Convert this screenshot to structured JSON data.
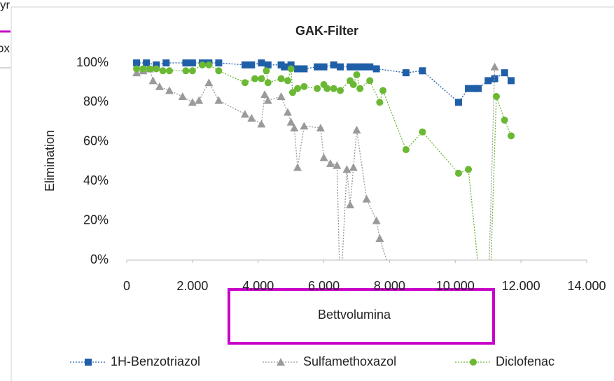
{
  "fragments": [
    "yr",
    "ox"
  ],
  "chart_data": {
    "type": "line",
    "title": "GAK-Filter",
    "xlabel": "Bettvolumina",
    "ylabel": "Elimination",
    "xlim": [
      0,
      14000
    ],
    "xticks": [
      0,
      {
        "value": 2000,
        "label": "2.000"
      },
      {
        "value": 4000,
        "label": "4.000"
      },
      {
        "value": 6000,
        "label": "6.000"
      },
      {
        "value": 8000,
        "label": "8.000"
      },
      {
        "value": 10000,
        "label": "10.000"
      },
      {
        "value": 12000,
        "label": "12.000"
      },
      {
        "value": 14000,
        "label": "14.000"
      }
    ],
    "ylim": [
      0,
      100
    ],
    "yticks": [
      {
        "value": 0,
        "label": "0%"
      },
      {
        "value": 20,
        "label": "20%"
      },
      {
        "value": 40,
        "label": "40%"
      },
      {
        "value": 60,
        "label": "60%"
      },
      {
        "value": 80,
        "label": "80%"
      },
      {
        "value": 100,
        "label": "100%"
      }
    ],
    "grid": false,
    "legend": "bottom",
    "series": [
      {
        "name": "1H-Benzotriazol",
        "color": "#1f5fa8",
        "marker": "square",
        "x": [
          300,
          600,
          900,
          1200,
          1800,
          2000,
          2300,
          2500,
          2800,
          3600,
          3800,
          4100,
          4300,
          4700,
          4800,
          5000,
          5200,
          5400,
          5800,
          6000,
          6300,
          6500,
          6800,
          7000,
          7200,
          7400,
          7600,
          8500,
          9000,
          10100,
          10400,
          10600,
          10700,
          11000,
          11200,
          11500,
          11700
        ],
        "values": [
          100,
          100,
          99,
          100,
          100,
          100,
          100,
          100,
          100,
          99,
          99,
          100,
          99,
          99,
          98,
          99,
          97,
          97,
          98,
          98,
          99,
          98,
          98,
          98,
          98,
          98,
          97,
          95,
          96,
          80,
          87,
          87,
          87,
          91,
          92,
          95,
          91
        ]
      },
      {
        "name": "Sulfamethoxazol",
        "color": "#9a9a9a",
        "marker": "triangle",
        "x": [
          300,
          500,
          700,
          800,
          1000,
          1300,
          1700,
          2000,
          2200,
          2500,
          2800,
          3600,
          3800,
          4100,
          4200,
          4300,
          4700,
          4900,
          5000,
          5100,
          5200,
          5400,
          5900,
          6000,
          6200,
          6400,
          6500,
          6700,
          6800,
          6900,
          7000,
          7300,
          7600,
          7700,
          8100,
          11000,
          11200
        ],
        "values": [
          95,
          96,
          97,
          91,
          88,
          86,
          83,
          80,
          81,
          90,
          81,
          74,
          72,
          69,
          84,
          81,
          83,
          75,
          70,
          67,
          47,
          68,
          67,
          52,
          49,
          48,
          -20,
          46,
          28,
          47,
          66,
          31,
          20,
          11,
          -10,
          -20,
          98
        ]
      },
      {
        "name": "Diclofenac",
        "color": "#6ab833",
        "marker": "circle",
        "x": [
          300,
          500,
          700,
          900,
          1100,
          1300,
          1800,
          2000,
          2300,
          2500,
          2800,
          3600,
          3900,
          4100,
          4250,
          4300,
          4700,
          4900,
          5000,
          5050,
          5200,
          5400,
          5800,
          6000,
          6100,
          6300,
          6500,
          6800,
          6900,
          7000,
          7100,
          7400,
          7700,
          7800,
          8500,
          9000,
          10100,
          10400,
          10800,
          11050,
          11250,
          11500,
          11700
        ],
        "values": [
          97,
          97,
          97,
          97,
          96,
          96,
          96,
          96,
          99,
          99,
          96,
          90,
          92,
          92,
          96,
          90,
          92,
          91,
          97,
          85,
          87,
          88,
          87,
          89,
          87,
          87,
          86,
          91,
          89,
          94,
          87,
          91,
          80,
          86,
          56,
          65,
          44,
          46,
          -20,
          -20,
          83,
          71,
          63
        ]
      }
    ]
  }
}
